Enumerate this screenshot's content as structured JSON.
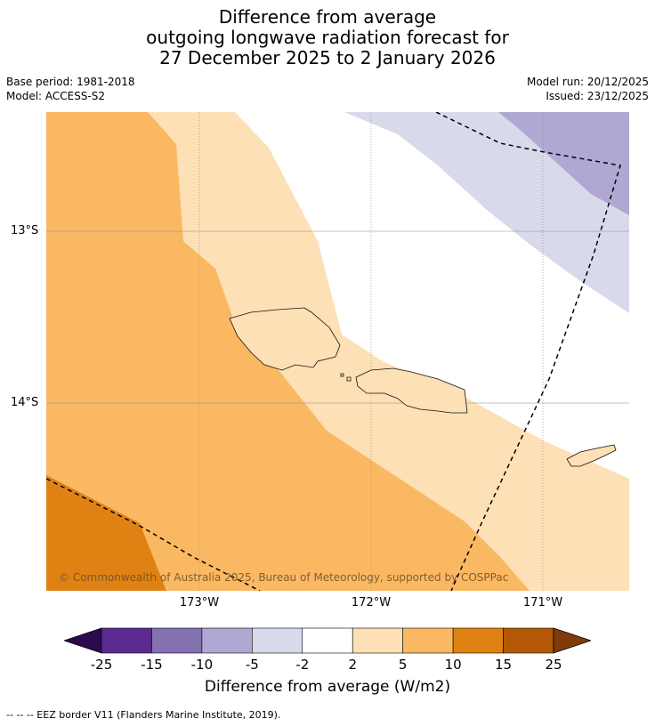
{
  "title": {
    "line1": "Difference from average",
    "line2": "outgoing longwave radiation forecast for",
    "line3": "27 December 2025 to 2 January 2026"
  },
  "meta": {
    "base_period": "Base period: 1981-2018",
    "model": "Model: ACCESS-S2",
    "model_run": "Model run: 20/12/2025",
    "issued": "Issued: 23/12/2025"
  },
  "axes": {
    "lat_labels": [
      "13°S",
      "14°S"
    ],
    "lon_labels": [
      "173°W",
      "172°W",
      "171°W"
    ]
  },
  "copyright": "© Commonwealth of Australia 2025, Bureau of Meteorology, supported by COSPPac",
  "colorbar": {
    "title": "Difference from average (W/m2)",
    "ticks": [
      "-25",
      "-15",
      "-10",
      "-5",
      "-2",
      "2",
      "5",
      "10",
      "15",
      "25"
    ],
    "colors": {
      "under": "#2d0a4f",
      "bins": [
        "#5c2a91",
        "#8471b0",
        "#b0a8d3",
        "#d9d9ec",
        "#ffffff",
        "#fde0b5",
        "#fbb862",
        "#e08213",
        "#b35806"
      ],
      "over": "#7f3b08"
    }
  },
  "footnote": "--  --  -- EEZ border V11 (Flanders Marine Institute, 2019)."
}
